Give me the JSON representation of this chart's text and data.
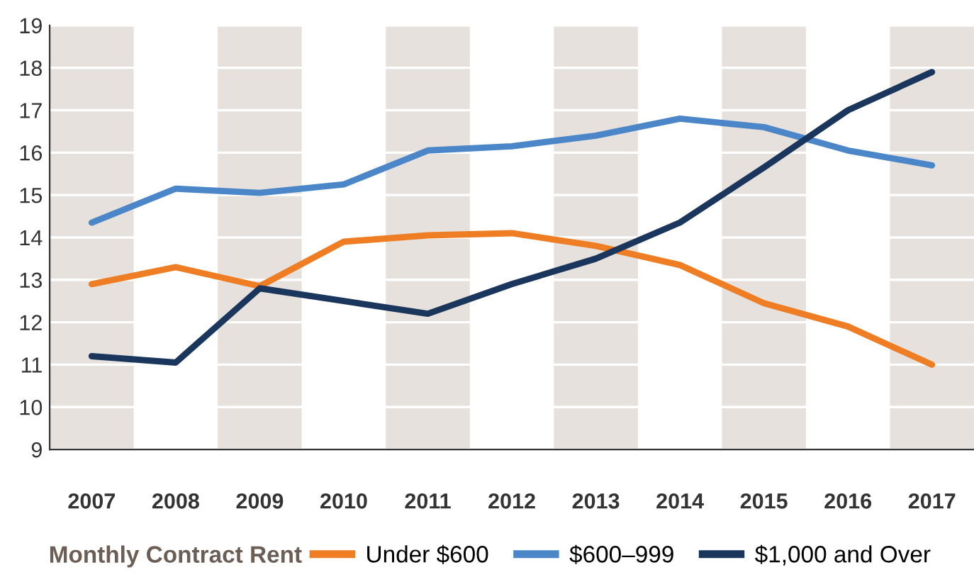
{
  "chart_data": {
    "type": "line",
    "categories": [
      "2007",
      "2008",
      "2009",
      "2010",
      "2011",
      "2012",
      "2013",
      "2014",
      "2015",
      "2016",
      "2017"
    ],
    "series": [
      {
        "name": "Under $600",
        "color": "#ee7d23",
        "values": [
          12.9,
          13.3,
          12.85,
          13.9,
          14.05,
          14.1,
          13.8,
          13.35,
          12.45,
          11.9,
          11.0
        ]
      },
      {
        "name": "$600–999",
        "color": "#4a86c8",
        "values": [
          14.35,
          15.15,
          15.05,
          15.25,
          16.05,
          16.15,
          16.4,
          16.8,
          16.6,
          16.05,
          15.7
        ]
      },
      {
        "name": "$1,000 and Over",
        "color": "#1b365d",
        "values": [
          11.2,
          11.05,
          12.8,
          12.5,
          12.2,
          12.9,
          13.5,
          14.35,
          15.65,
          17.0,
          17.9
        ]
      }
    ],
    "ylim": [
      9,
      19
    ],
    "yticks": [
      9,
      10,
      11,
      12,
      13,
      14,
      15,
      16,
      17,
      18,
      19
    ],
    "grid": "y",
    "legend": "bottom",
    "legend_title": "Monthly Contract Rent",
    "marker": "none",
    "line_style": "solid",
    "bands": [
      {
        "axis": "x",
        "from": "2007",
        "to": "2007",
        "color": "#e6e1dc"
      },
      {
        "axis": "x",
        "from": "2009",
        "to": "2009",
        "color": "#e6e1dc"
      },
      {
        "axis": "x",
        "from": "2011",
        "to": "2011",
        "color": "#e6e1dc"
      },
      {
        "axis": "x",
        "from": "2013",
        "to": "2013",
        "color": "#e6e1dc"
      },
      {
        "axis": "x",
        "from": "2015",
        "to": "2015",
        "color": "#e6e1dc"
      },
      {
        "axis": "x",
        "from": "2017",
        "to": "2017",
        "color": "#e6e1dc"
      }
    ]
  }
}
